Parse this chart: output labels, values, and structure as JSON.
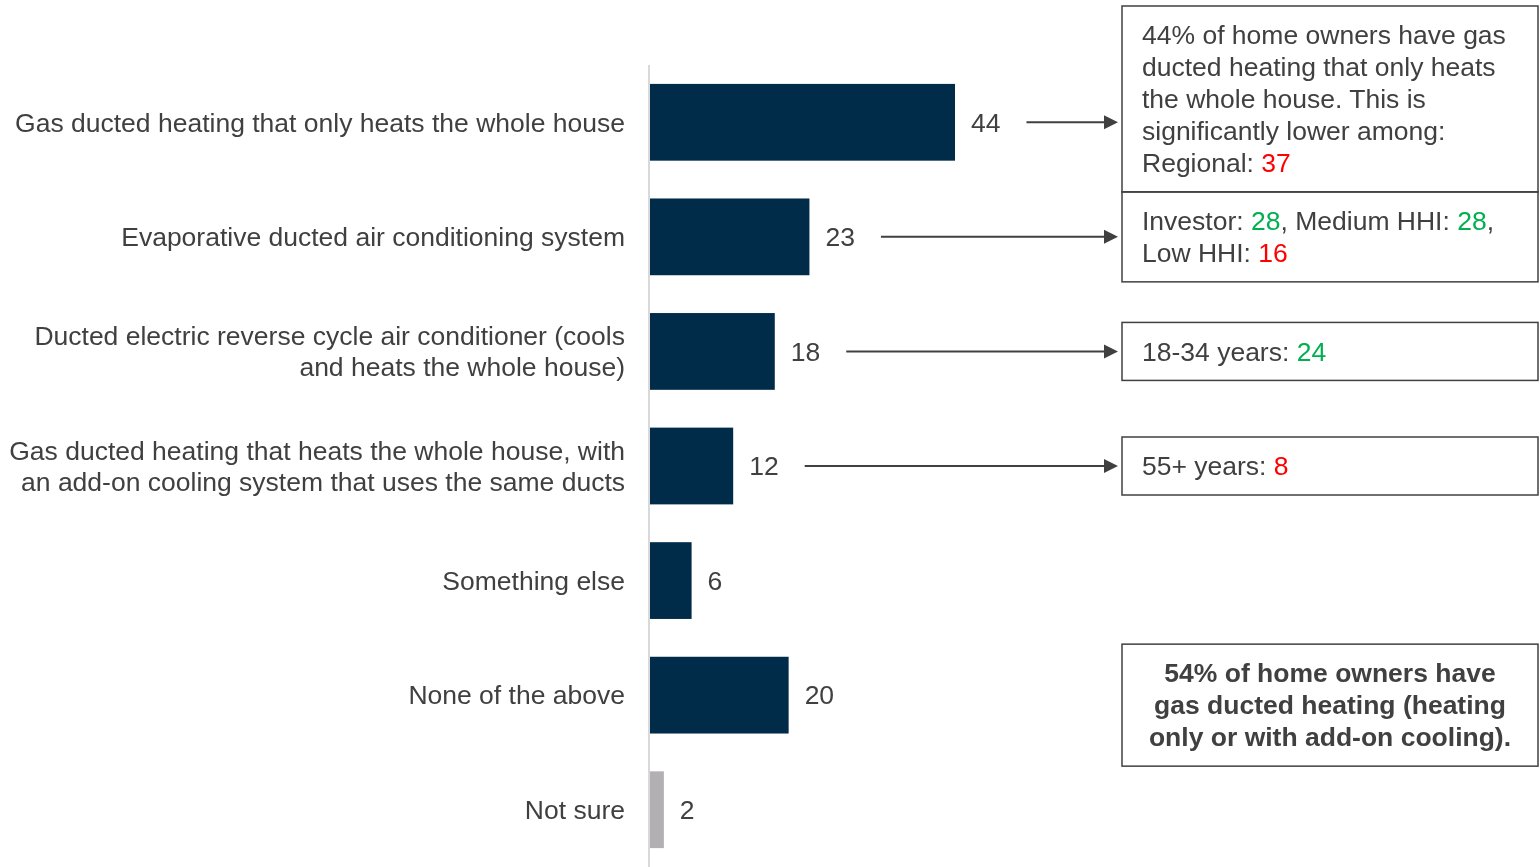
{
  "chart_data": {
    "type": "bar",
    "orientation": "horizontal",
    "data_labels": true,
    "categories": [
      "Gas ducted heating that only heats the whole house",
      "Evaporative ducted air conditioning system",
      "Ducted electric reverse cycle air conditioner (cools and heats the whole house)",
      "Gas ducted heating that heats the whole house, with an add-on cooling system that uses the same ducts",
      "Something else",
      "None of the above",
      "Not sure"
    ],
    "values": [
      44,
      23,
      18,
      12,
      6,
      20,
      2
    ],
    "colors": [
      "#002b49",
      "#002b49",
      "#002b49",
      "#002b49",
      "#002b49",
      "#002b49",
      "#b3b0b3"
    ],
    "annotations": [
      "44% of home owners have gas ducted heating that only heats the whole house. This is significantly lower among:\nRegional: 37",
      "Investor: 28, Medium HHI: 28, Low HHI: 16",
      "18-34 years: 24",
      "55+ years: 8",
      "54% of home owners have gas ducted heating (heating only or with add-on cooling)."
    ],
    "tick_labels": "y"
  }
}
